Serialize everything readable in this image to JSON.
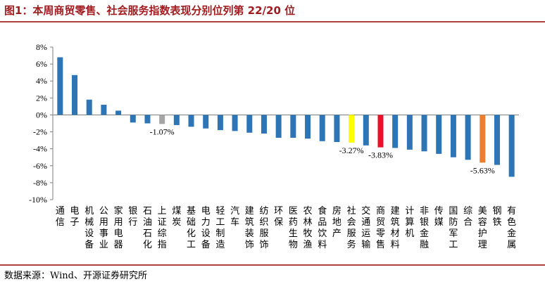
{
  "header": {
    "title": "图1：本周商贸零售、社会服务指数表现分别位列第 22/20 位"
  },
  "footer": {
    "source": "数据来源：Wind、开源证券研究所"
  },
  "chart_data": {
    "type": "bar",
    "title": "",
    "xlabel": "",
    "ylabel": "",
    "ylim": [
      -10,
      8
    ],
    "yticks": [
      -10,
      -8,
      -6,
      -4,
      -2,
      0,
      2,
      4,
      6,
      8
    ],
    "ytick_labels": [
      "-10%",
      "-8%",
      "-6%",
      "-4%",
      "-2%",
      "0%",
      "2%",
      "4%",
      "6%",
      "8%"
    ],
    "grid": false,
    "legend": "none",
    "categories": [
      "通信",
      "电子",
      "机械设备",
      "公用事业",
      "家用电器",
      "银行",
      "石油石化",
      "上证综指",
      "煤炭",
      "基础化工",
      "电力设备",
      "轻工制造",
      "汽车",
      "建筑装饰",
      "纺织服饰",
      "环保",
      "医药生物",
      "农林牧渔",
      "食品饮料",
      "房地产",
      "社会服务",
      "交通运输",
      "商贸零售",
      "建筑材料",
      "计算机",
      "非银金融",
      "传媒",
      "国防军工",
      "综合",
      "美容护理",
      "钢铁",
      "有色金属"
    ],
    "values": [
      6.8,
      4.7,
      1.8,
      1.2,
      0.5,
      -0.9,
      -1.0,
      -1.07,
      -1.2,
      -1.4,
      -1.6,
      -1.8,
      -1.9,
      -2.1,
      -2.2,
      -2.7,
      -2.7,
      -2.8,
      -3.1,
      -3.2,
      -3.27,
      -3.6,
      -3.83,
      -3.9,
      -4.1,
      -4.3,
      -4.6,
      -5.0,
      -5.3,
      -5.63,
      -5.9,
      -7.3
    ],
    "highlights": [
      {
        "category": "上证综指",
        "color": "#a6a6a6",
        "label": "-1.07%"
      },
      {
        "category": "社会服务",
        "color": "#ffff00",
        "label": "-3.27%"
      },
      {
        "category": "商贸零售",
        "color": "#e8102a",
        "label": "-3.83%"
      },
      {
        "category": "美容护理",
        "color": "#ed7d31",
        "label": "-5.63%"
      }
    ],
    "default_color": "#2e75b6"
  }
}
